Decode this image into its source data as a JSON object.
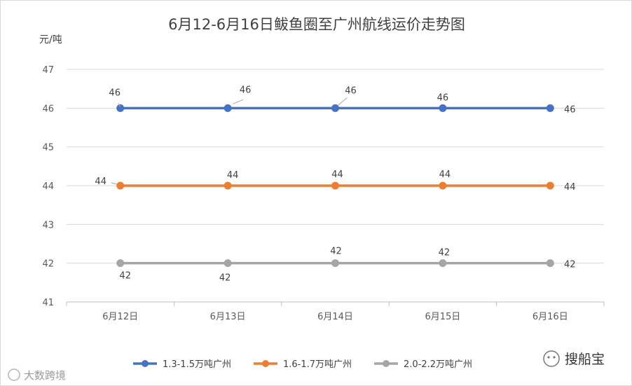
{
  "chart_data": {
    "type": "line",
    "title": "6月12-6月16日鲅鱼圈至广州航线运价走势图",
    "ylabel": "元/吨",
    "xlabel": "",
    "categories": [
      "6月12日",
      "6月13日",
      "6月14日",
      "6月15日",
      "6月16日"
    ],
    "ylim": [
      41,
      47
    ],
    "yticks": [
      "41",
      "42",
      "43",
      "44",
      "45",
      "46",
      "47"
    ],
    "grid": true,
    "legend_position": "bottom",
    "series": [
      {
        "name": "1.3-1.5万吨广州",
        "values": [
          46,
          46,
          46,
          46,
          46
        ],
        "labels": [
          "46",
          "46",
          "46",
          "46",
          "46"
        ],
        "color": "#4472C4"
      },
      {
        "name": "1.6-1.7万吨广州",
        "values": [
          44,
          44,
          44,
          44,
          44
        ],
        "labels": [
          "44",
          "44",
          "44",
          "44",
          "44"
        ],
        "color": "#ED7D31"
      },
      {
        "name": "2.0-2.2万吨广州",
        "values": [
          42,
          42,
          42,
          42,
          42
        ],
        "labels": [
          "42",
          "42",
          "42",
          "42",
          "42"
        ],
        "color": "#A5A5A5"
      }
    ]
  },
  "watermarks": {
    "left": "大数跨境",
    "right": "搜船宝"
  }
}
